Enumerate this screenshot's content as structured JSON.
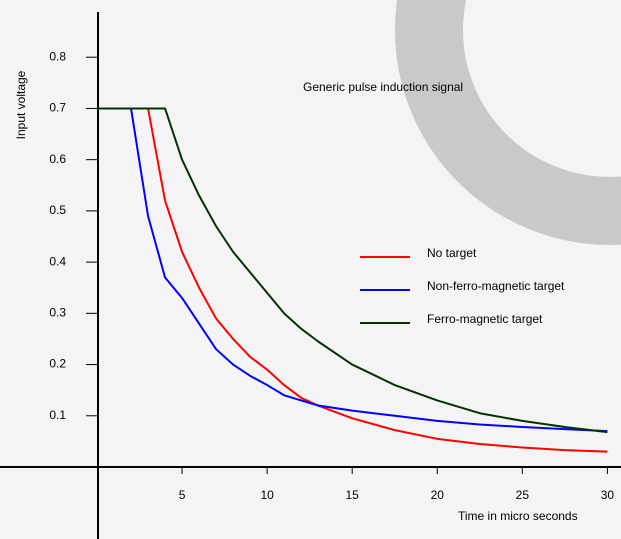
{
  "chart_data": {
    "type": "line",
    "title": "Generic pulse induction signal",
    "x_label": "Time in micro seconds",
    "y_label": "Input voltage",
    "x": [
      0,
      2,
      3,
      4,
      5,
      6,
      7,
      8,
      9,
      10,
      11,
      12,
      13,
      15,
      17.5,
      20,
      22.5,
      25,
      27.5,
      30
    ],
    "series": [
      {
        "name": "No target",
        "color": "#ff0000",
        "values": [
          0.7,
          0.7,
          0.7,
          0.52,
          0.42,
          0.35,
          0.29,
          0.25,
          0.215,
          0.19,
          0.16,
          0.135,
          0.12,
          0.095,
          0.072,
          0.055,
          0.045,
          0.038,
          0.033,
          0.03
        ]
      },
      {
        "name": "Non-ferro-magnetic target",
        "color": "#0000ff",
        "values": [
          0.7,
          0.7,
          0.49,
          0.37,
          0.33,
          0.28,
          0.23,
          0.2,
          0.178,
          0.16,
          0.14,
          0.13,
          0.12,
          0.11,
          0.1,
          0.09,
          0.083,
          0.078,
          0.074,
          0.07
        ]
      },
      {
        "name": "Ferro-magnetic target",
        "color": "#003300",
        "values": [
          0.7,
          0.7,
          0.7,
          0.7,
          0.6,
          0.53,
          0.47,
          0.42,
          0.38,
          0.34,
          0.3,
          0.27,
          0.245,
          0.2,
          0.16,
          0.13,
          0.105,
          0.09,
          0.078,
          0.068
        ]
      }
    ],
    "xlim": [
      0,
      30.8
    ],
    "ylim": [
      0,
      0.9
    ],
    "xticks": [
      5,
      10,
      15,
      20,
      25,
      30
    ],
    "yticks": [
      0.1,
      0.2,
      0.3,
      0.4,
      0.5,
      0.6,
      0.7,
      0.8
    ],
    "legend": "right"
  }
}
